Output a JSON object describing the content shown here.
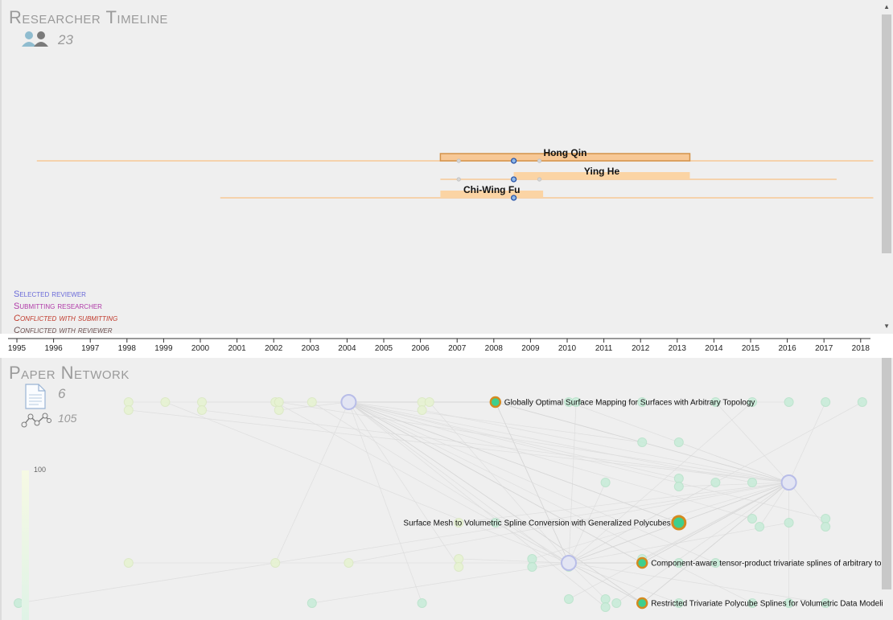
{
  "timeline": {
    "title": "Researcher Timeline",
    "researcher_count": "23",
    "researchers": [
      {
        "name": "Hong Qin",
        "start": 1995.5,
        "end": 2018.3,
        "active_start": 2006.5,
        "active_end": 2013.3,
        "selected": true,
        "markers": [
          2007,
          2008.5,
          2009.2
        ]
      },
      {
        "name": "Ying He",
        "start": 2006.5,
        "end": 2017.3,
        "active_start": 2008.5,
        "active_end": 2013.3,
        "selected": false,
        "markers": [
          2007,
          2008.5,
          2009.2
        ]
      },
      {
        "name": "Chi-Wing Fu",
        "start": 2000.5,
        "end": 2018.3,
        "active_start": 2006.5,
        "active_end": 2009.3,
        "selected": false,
        "markers": [
          2008.5
        ]
      }
    ],
    "legend": [
      {
        "label": "Selected reviewer",
        "color": "#6a6ad8"
      },
      {
        "label": "Submitting researcher",
        "color": "#b03aa8"
      },
      {
        "label": "Conflicted with submitting",
        "color": "#c0392b"
      },
      {
        "label": "Conflicted with reviewer",
        "color": "#6b4f4f"
      }
    ]
  },
  "axis": {
    "years": [
      "1995",
      "1996",
      "1997",
      "1998",
      "1999",
      "2000",
      "2001",
      "2002",
      "2003",
      "2004",
      "2005",
      "2006",
      "2007",
      "2008",
      "2009",
      "2010",
      "2011",
      "2012",
      "2013",
      "2014",
      "2015",
      "2016",
      "2017",
      "2018"
    ]
  },
  "network": {
    "title": "Paper Network",
    "paper_count": "6",
    "link_count": "105",
    "scale_max": "100",
    "papers": [
      {
        "title": "Globally Optimal Surface Mapping for Surfaces with Arbitrary Topology",
        "year": 2008,
        "row": 0,
        "label_side": "right",
        "size": "small"
      },
      {
        "title": "Surface Mesh to Volumetric Spline Conversion with Generalized Polycubes",
        "year": 2013,
        "row": 3,
        "label_side": "left",
        "size": "large"
      },
      {
        "title": "Component-aware tensor-product trivariate splines of arbitrary top",
        "year": 2012,
        "row": 4,
        "label_side": "right",
        "size": "small"
      },
      {
        "title": "Restricted Trivariate Polycube Splines for Volumetric Data Modelir",
        "year": 2012,
        "row": 5,
        "label_side": "right",
        "size": "small"
      }
    ],
    "hubs": [
      {
        "year": 2004,
        "row": 0
      },
      {
        "year": 2016,
        "row": 2
      },
      {
        "year": 2010,
        "row": 4
      }
    ],
    "nodes": [
      {
        "year": 1998,
        "row": 0
      },
      {
        "year": 1998,
        "row": 0.2
      },
      {
        "year": 1999,
        "row": 0
      },
      {
        "year": 2000,
        "row": 0
      },
      {
        "year": 2000,
        "row": 0.2
      },
      {
        "year": 2002,
        "row": 0
      },
      {
        "year": 2002.1,
        "row": 0.2
      },
      {
        "year": 2002.1,
        "row": 0
      },
      {
        "year": 2003,
        "row": 0
      },
      {
        "year": 2006,
        "row": 0
      },
      {
        "year": 2006,
        "row": 0.2
      },
      {
        "year": 2006.2,
        "row": 0
      },
      {
        "year": 2008,
        "row": 0
      },
      {
        "year": 2010,
        "row": 0
      },
      {
        "year": 2010.2,
        "row": 0
      },
      {
        "year": 2012,
        "row": 0
      },
      {
        "year": 2014,
        "row": 0
      },
      {
        "year": 2015,
        "row": 0
      },
      {
        "year": 2016,
        "row": 0
      },
      {
        "year": 2017,
        "row": 0
      },
      {
        "year": 2018,
        "row": 0
      },
      {
        "year": 2012,
        "row": 1
      },
      {
        "year": 2013,
        "row": 1
      },
      {
        "year": 2011,
        "row": 2
      },
      {
        "year": 2013,
        "row": 1.9
      },
      {
        "year": 2013,
        "row": 2.1
      },
      {
        "year": 2014,
        "row": 2
      },
      {
        "year": 2015,
        "row": 2
      },
      {
        "year": 2007,
        "row": 3
      },
      {
        "year": 2008,
        "row": 3
      },
      {
        "year": 2015,
        "row": 2.9
      },
      {
        "year": 2015.2,
        "row": 3.1
      },
      {
        "year": 2016,
        "row": 3
      },
      {
        "year": 2017,
        "row": 2.9
      },
      {
        "year": 2017,
        "row": 3.1
      },
      {
        "year": 1998,
        "row": 4
      },
      {
        "year": 2002,
        "row": 4
      },
      {
        "year": 2004,
        "row": 4
      },
      {
        "year": 2007,
        "row": 3.9
      },
      {
        "year": 2007,
        "row": 4.1
      },
      {
        "year": 2009,
        "row": 3.9
      },
      {
        "year": 2009,
        "row": 4.1
      },
      {
        "year": 2010,
        "row": 4.1
      },
      {
        "year": 2012,
        "row": 3.9
      },
      {
        "year": 2013,
        "row": 4
      },
      {
        "year": 2014,
        "row": 4
      },
      {
        "year": 1995,
        "row": 5
      },
      {
        "year": 2003,
        "row": 5
      },
      {
        "year": 2006,
        "row": 5
      },
      {
        "year": 2010,
        "row": 4.9
      },
      {
        "year": 2011,
        "row": 4.9
      },
      {
        "year": 2011,
        "row": 5.1
      },
      {
        "year": 2011.3,
        "row": 5
      },
      {
        "year": 2013,
        "row": 5
      },
      {
        "year": 2015,
        "row": 5
      },
      {
        "year": 2016,
        "row": 5
      },
      {
        "year": 2017,
        "row": 5
      }
    ]
  }
}
